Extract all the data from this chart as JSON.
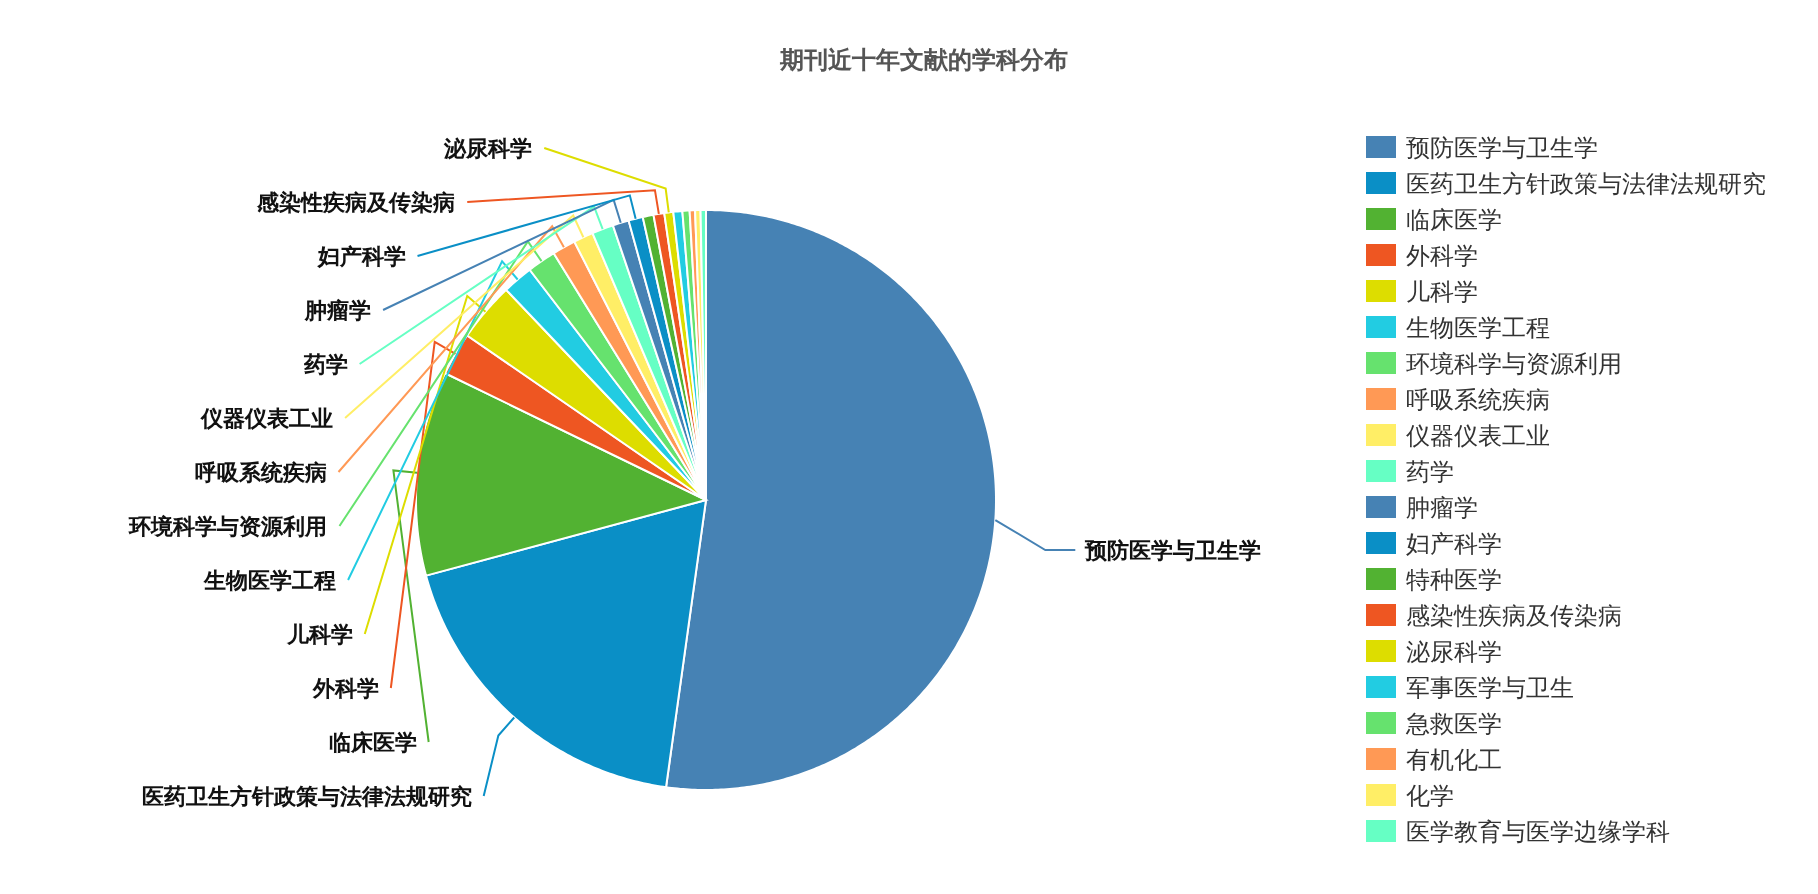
{
  "chart_data": {
    "type": "pie",
    "title": "期刊近十年文献的学科分布",
    "categories": [
      "预防医学与卫生学",
      "医药卫生方针政策与法律法规研究",
      "临床医学",
      "外科学",
      "儿科学",
      "生物医学工程",
      "环境科学与资源利用",
      "呼吸系统疾病",
      "仪器仪表工业",
      "药学",
      "肿瘤学",
      "妇产科学",
      "特种医学",
      "感染性疾病及传染病",
      "泌尿科学",
      "军事医学与卫生",
      "急救医学",
      "有机化工",
      "化学",
      "医学教育与医学边缘学科"
    ],
    "values": [
      52.2,
      18.6,
      11.4,
      2.4,
      3.3,
      1.7,
      1.6,
      1.3,
      1.1,
      1.2,
      0.9,
      0.8,
      0.6,
      0.6,
      0.5,
      0.5,
      0.4,
      0.3,
      0.3,
      0.3
    ],
    "colors": [
      "#4682b4",
      "#0a8fc6",
      "#52b232",
      "#ee5622",
      "#dddd00",
      "#22cce2",
      "#66e26e",
      "#ff9955",
      "#ffee66",
      "#66ffc4",
      "#4682b4",
      "#0a8fc6",
      "#52b232",
      "#ee5622",
      "#dddd00",
      "#22cce2",
      "#66e26e",
      "#ff9955",
      "#ffee66",
      "#66ffc4"
    ],
    "value_labels": [
      "预防医学与卫生学",
      "医药卫生方针政策与法律法规研究",
      "临床医学",
      "外科学",
      "儿科学",
      "生物医学工程",
      "环境科学与资源利用",
      "呼吸系统疾病",
      "仪器仪表工业",
      "药学",
      "肿瘤学",
      "妇产科学",
      null,
      "感染性疾病及传染病",
      "泌尿科学",
      null,
      null,
      null,
      null,
      null
    ],
    "legend": "right"
  }
}
